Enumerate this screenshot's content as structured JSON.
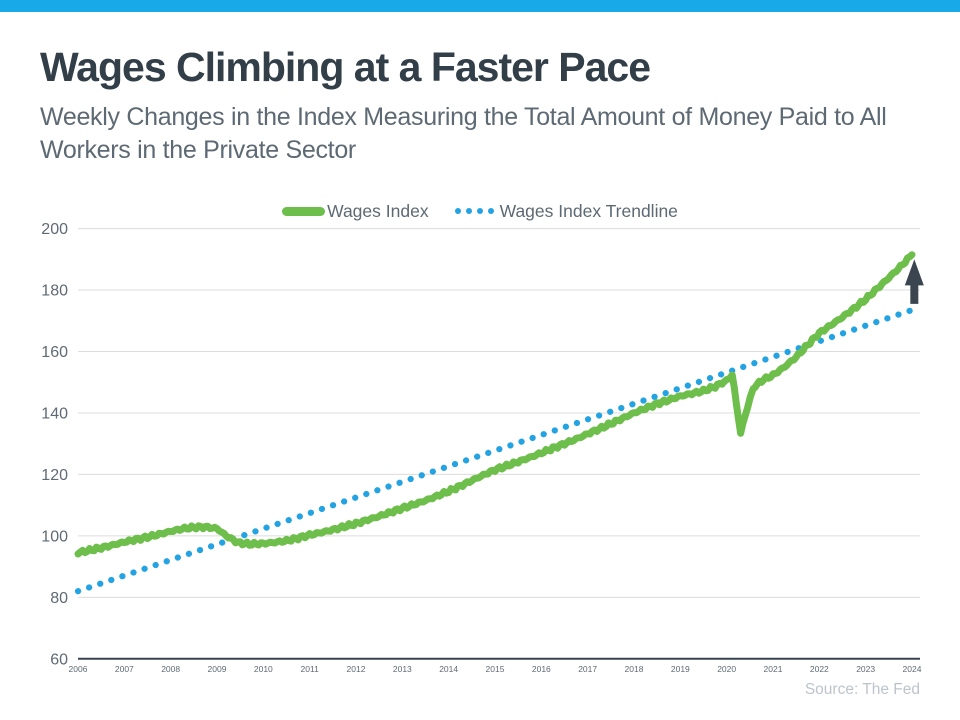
{
  "page": {
    "top_bar_color": "#18A9E9",
    "title": "Wages Climbing at a Faster Pace",
    "subtitle": "Weekly Changes in the Index Measuring the Total Amount of Money Paid to All Workers in the Private Sector",
    "source": "Source: The Fed"
  },
  "legend": {
    "items": [
      {
        "label": "Wages Index",
        "swatch": "thick-line",
        "color": "#6EBE4C"
      },
      {
        "label": "Wages Index Trendline",
        "swatch": "dots",
        "color": "#24A3E3"
      }
    ]
  },
  "axis": {
    "text_color": "#5E6A74",
    "grid_color": "#DCDCDC",
    "baseline_color": "#39434D"
  },
  "chart_data": {
    "type": "line",
    "title": "Wages Climbing at a Faster Pace",
    "xlabel": "",
    "ylabel": "",
    "x_range": [
      2006,
      2024
    ],
    "y_range": [
      60,
      200
    ],
    "x_ticks": [
      2006,
      2007,
      2008,
      2009,
      2010,
      2011,
      2012,
      2013,
      2014,
      2015,
      2016,
      2017,
      2018,
      2019,
      2020,
      2021,
      2022,
      2023,
      2024
    ],
    "y_ticks": [
      60,
      80,
      100,
      120,
      140,
      160,
      180,
      200
    ],
    "grid": "horizontal",
    "legend_position": "top-center",
    "series": [
      {
        "name": "Wages Index",
        "style": "solid",
        "color": "#6EBE4C",
        "stroke_width": 7,
        "points": [
          [
            2006,
            94.5
          ],
          [
            2006.25,
            95.3
          ],
          [
            2006.5,
            96.1
          ],
          [
            2006.75,
            97
          ],
          [
            2007,
            98
          ],
          [
            2007.25,
            98.8
          ],
          [
            2007.5,
            99.6
          ],
          [
            2007.75,
            100.5
          ],
          [
            2008,
            101.5
          ],
          [
            2008.25,
            102.3
          ],
          [
            2008.5,
            102.8
          ],
          [
            2008.75,
            102.9
          ],
          [
            2009,
            102.4
          ],
          [
            2009.2,
            100
          ],
          [
            2009.45,
            97.8
          ],
          [
            2009.7,
            97.3
          ],
          [
            2010,
            97.5
          ],
          [
            2010.25,
            97.9
          ],
          [
            2010.5,
            98.4
          ],
          [
            2010.75,
            99.3
          ],
          [
            2011,
            100.3
          ],
          [
            2011.25,
            101.1
          ],
          [
            2011.5,
            102
          ],
          [
            2011.75,
            103
          ],
          [
            2012,
            104
          ],
          [
            2012.25,
            105.2
          ],
          [
            2012.5,
            106.4
          ],
          [
            2012.75,
            107.7
          ],
          [
            2013,
            109
          ],
          [
            2013.25,
            110.2
          ],
          [
            2013.5,
            111.5
          ],
          [
            2013.75,
            113
          ],
          [
            2014,
            114.5
          ],
          [
            2014.25,
            116.2
          ],
          [
            2014.5,
            118
          ],
          [
            2014.75,
            119.8
          ],
          [
            2015,
            121.5
          ],
          [
            2015.25,
            122.8
          ],
          [
            2015.5,
            124.1
          ],
          [
            2015.75,
            125.5
          ],
          [
            2016,
            127
          ],
          [
            2016.25,
            128.5
          ],
          [
            2016.5,
            130
          ],
          [
            2016.75,
            131.5
          ],
          [
            2017,
            133.2
          ],
          [
            2017.25,
            134.8
          ],
          [
            2017.5,
            136.5
          ],
          [
            2017.75,
            138.2
          ],
          [
            2018,
            140
          ],
          [
            2018.25,
            141.5
          ],
          [
            2018.5,
            143
          ],
          [
            2018.75,
            144.2
          ],
          [
            2019,
            145.5
          ],
          [
            2019.25,
            146.3
          ],
          [
            2019.5,
            147.2
          ],
          [
            2019.75,
            148.6
          ],
          [
            2020,
            150.6
          ],
          [
            2020.12,
            152.5
          ],
          [
            2020.3,
            133.5
          ],
          [
            2020.45,
            142
          ],
          [
            2020.57,
            148
          ],
          [
            2020.75,
            150.5
          ],
          [
            2021,
            152.3
          ],
          [
            2021.25,
            155
          ],
          [
            2021.5,
            158.2
          ],
          [
            2021.75,
            162.2
          ],
          [
            2022,
            166
          ],
          [
            2022.25,
            168.6
          ],
          [
            2022.5,
            171.2
          ],
          [
            2022.75,
            174
          ],
          [
            2023,
            177
          ],
          [
            2023.25,
            180.5
          ],
          [
            2023.5,
            184
          ],
          [
            2023.75,
            187.6
          ],
          [
            2024,
            191.5
          ]
        ]
      },
      {
        "name": "Wages Index Trendline",
        "style": "dotted",
        "color": "#24A3E3",
        "stroke_width": 6.2,
        "points": [
          [
            2006,
            82
          ],
          [
            2024,
            173.5
          ]
        ]
      }
    ],
    "annotation": {
      "type": "up-arrow",
      "color": "#3A4550",
      "x": 2024.05,
      "from_value": 175.5,
      "to_value": 190
    }
  }
}
